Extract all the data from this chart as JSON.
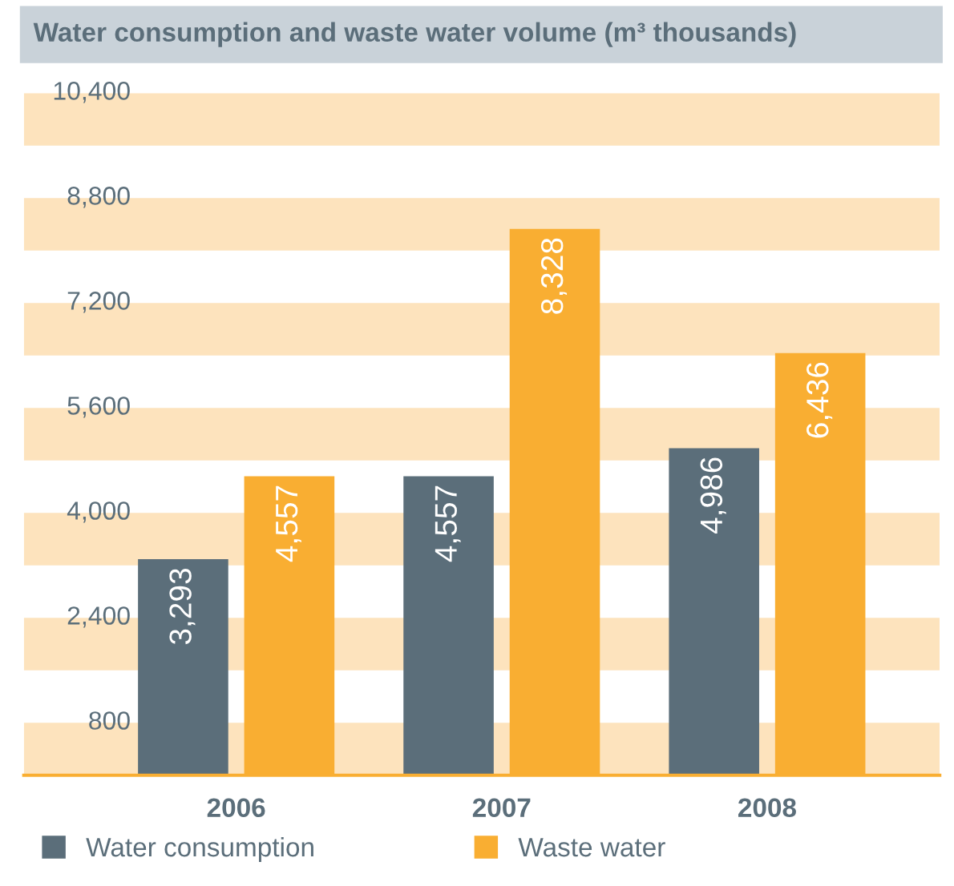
{
  "chart_data": {
    "type": "bar",
    "title": "Water consumption and waste water volume (m³ thousands)",
    "categories": [
      "2006",
      "2007",
      "2008"
    ],
    "series": [
      {
        "name": "Water consumption",
        "color": "#5b6e7a",
        "values": [
          3293,
          4557,
          4986
        ],
        "value_labels": [
          "3,293",
          "4,557",
          "4,986"
        ]
      },
      {
        "name": "Waste water",
        "color": "#f9ae32",
        "values": [
          4557,
          8328,
          6436
        ],
        "value_labels": [
          "4,557",
          "8,328",
          "6,436"
        ]
      }
    ],
    "ylim": [
      0,
      10400
    ],
    "yticks": [
      {
        "value": 800,
        "label": "800"
      },
      {
        "value": 2400,
        "label": "2,400"
      },
      {
        "value": 4000,
        "label": "4,000"
      },
      {
        "value": 5600,
        "label": "5,600"
      },
      {
        "value": 7200,
        "label": "7,200"
      },
      {
        "value": 8800,
        "label": "8,800"
      },
      {
        "value": 10400,
        "label": "10,400"
      }
    ],
    "bands": [
      {
        "axis": "y",
        "from": 0,
        "to": 800,
        "color": "#fde3bd"
      },
      {
        "axis": "y",
        "from": 1600,
        "to": 2400,
        "color": "#fde3bd"
      },
      {
        "axis": "y",
        "from": 3200,
        "to": 4000,
        "color": "#fde3bd"
      },
      {
        "axis": "y",
        "from": 4800,
        "to": 5600,
        "color": "#fde3bd"
      },
      {
        "axis": "y",
        "from": 6400,
        "to": 7200,
        "color": "#fde3bd"
      },
      {
        "axis": "y",
        "from": 8000,
        "to": 8800,
        "color": "#fde3bd"
      },
      {
        "axis": "y",
        "from": 9600,
        "to": 10400,
        "color": "#fde3bd"
      }
    ],
    "grid": false,
    "legend": "bottom"
  }
}
